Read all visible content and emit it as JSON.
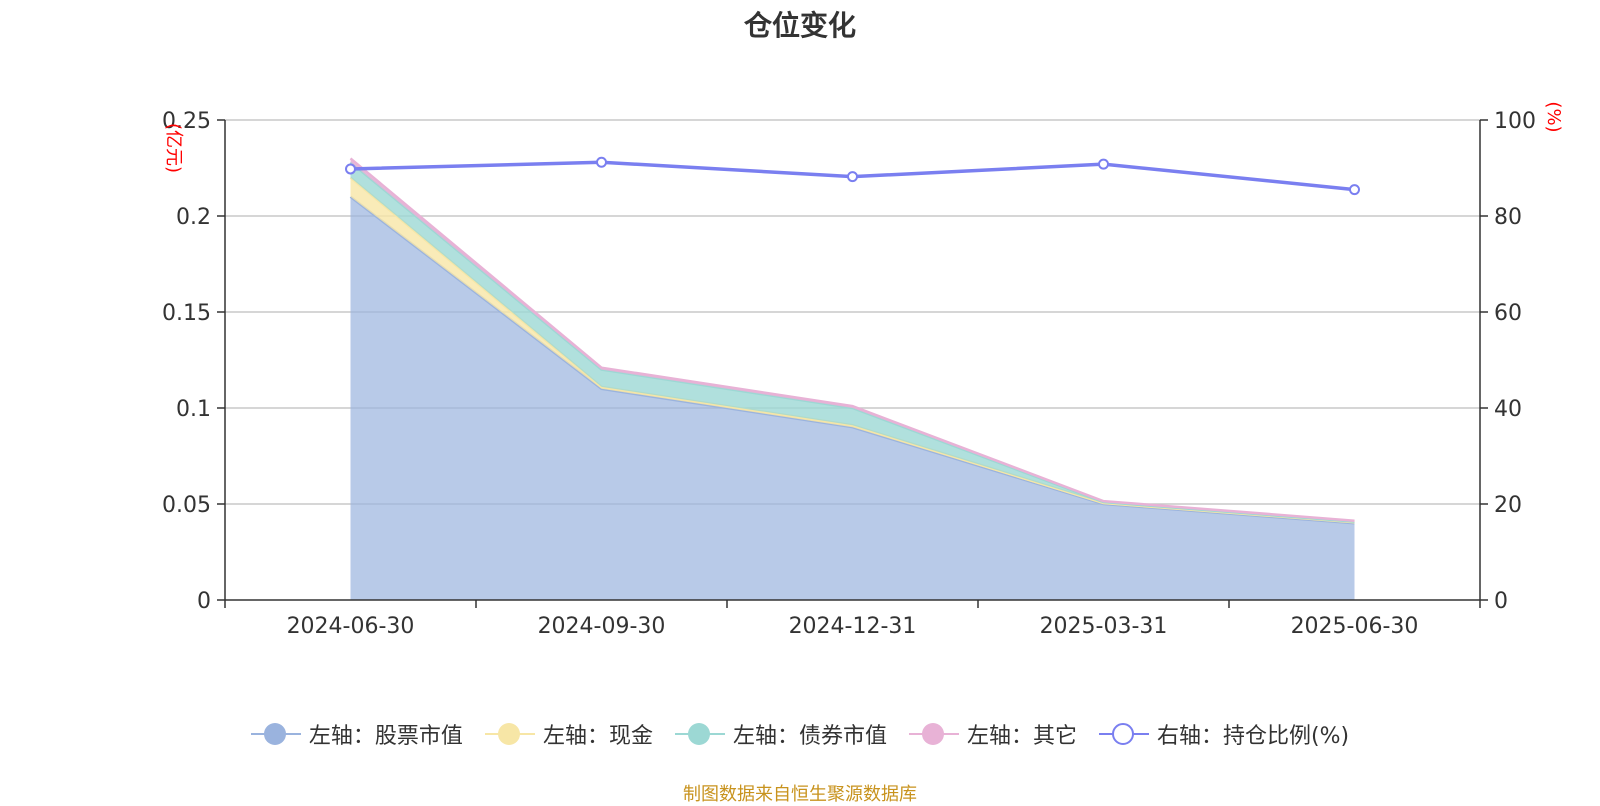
{
  "title": "仓位变化",
  "source_note": "制图数据来自恒生聚源数据库",
  "colors": {
    "stock": "#9ab3de",
    "cash": "#f7e6a6",
    "bond": "#9cd8d4",
    "other": "#e8b2d6",
    "ratio": "#7a7ff0",
    "grid": "#c8c8c8",
    "axis": "#333333",
    "unit": "#ff0000"
  },
  "chart_data": {
    "type": "area",
    "categories": [
      "2024-06-30",
      "2024-09-30",
      "2024-12-31",
      "2025-03-31",
      "2025-06-30"
    ],
    "left_axis": {
      "unit": "(亿元)",
      "ylim": [
        0,
        0.25
      ],
      "ticks": [
        "0",
        "0.05",
        "0.1",
        "0.15",
        "0.2",
        "0.25"
      ]
    },
    "right_axis": {
      "unit": "(%)",
      "ylim": [
        0,
        100
      ],
      "ticks": [
        "0",
        "20",
        "40",
        "60",
        "80",
        "100"
      ]
    },
    "stacked": true,
    "series": [
      {
        "key": "stock",
        "name": "左轴：股票市值",
        "axis": "left",
        "values": [
          0.21,
          0.11,
          0.09,
          0.05,
          0.04
        ]
      },
      {
        "key": "cash",
        "name": "左轴：现金",
        "axis": "left",
        "values": [
          0.01,
          0.001,
          0.001,
          0.0005,
          0.0005
        ]
      },
      {
        "key": "bond",
        "name": "左轴：债券市值",
        "axis": "left",
        "values": [
          0.008,
          0.009,
          0.009,
          0.0005,
          0.0003
        ]
      },
      {
        "key": "other",
        "name": "左轴：其它",
        "axis": "left",
        "values": [
          0.002,
          0.001,
          0.001,
          0.0005,
          0.0005
        ]
      },
      {
        "key": "ratio",
        "name": "右轴：持仓比例(%)",
        "axis": "right",
        "type": "line",
        "values": [
          89.8,
          91.2,
          88.2,
          90.8,
          85.5
        ]
      }
    ],
    "grid": true,
    "legend_position": "bottom"
  }
}
